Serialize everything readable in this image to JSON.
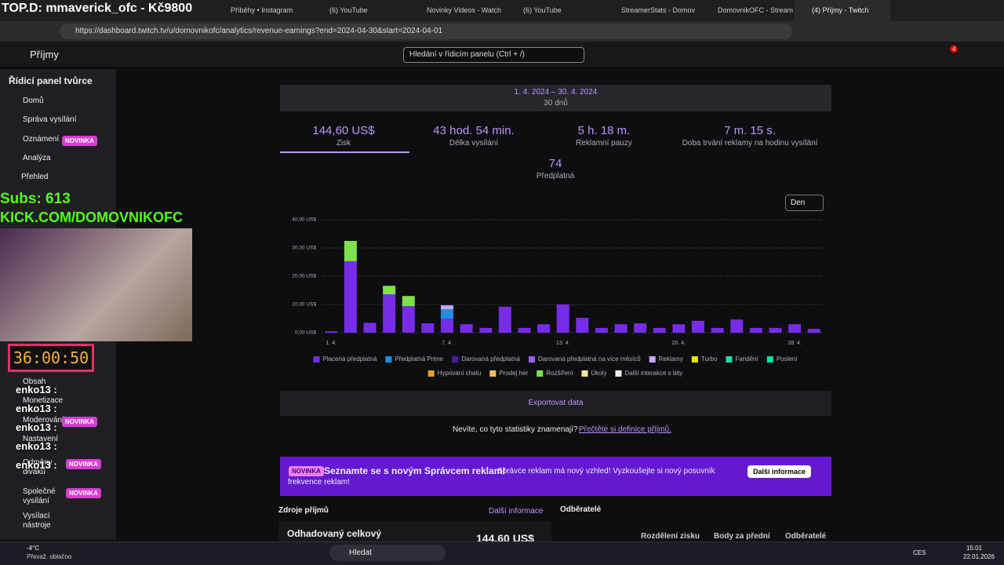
{
  "browser": {
    "tabs": [
      "Příběhy • Instagram",
      "(6) YouTube",
      "Novinky Videos - Watch",
      "(6) YouTube",
      "StreamerStats - Domov",
      "DomovnikOFC - Stream",
      "(4) Příjmy - Twitch"
    ],
    "url": "https://dashboard.twitch.tv/u/domovnikofc/analytics/revenue-earnings?end=2024-04-30&start=2024-04-01"
  },
  "header": {
    "page": "Příjmy",
    "search": "Hledání v řídicím panelu (Ctrl + /)",
    "badge": "4"
  },
  "sidebar": {
    "title": "Řídicí panel tvůrce",
    "items": [
      {
        "label": "Domů"
      },
      {
        "label": "Správa vysílání"
      },
      {
        "label": "Oznámení",
        "tag": "NOVINKA"
      },
      {
        "label": "Analýza"
      },
      {
        "label": "Přehled"
      },
      {
        "label": "Obsah"
      },
      {
        "label": "Monetizace"
      },
      {
        "label": "Moderování",
        "tag": "NOVINKA"
      },
      {
        "label": "Nastavení"
      },
      {
        "label": "Odměny diváků",
        "tag": "NOVINKA"
      },
      {
        "label": "Společné vysílání",
        "tag": "NOVINKA"
      },
      {
        "label": "Vysílací nástroje"
      }
    ]
  },
  "overlay": {
    "top": "TOP.D: mmaverick_ofc - Kč9800",
    "subs": "Subs: 613",
    "kick": "KICK.COM/DOMOVNIKOFC",
    "timer": "36:00:50",
    "chat": [
      "enko13 :",
      "enko13 :",
      "enko13 :",
      "enko13 :",
      "enko13 :"
    ]
  },
  "date": {
    "range": "1. 4. 2024 – 30. 4. 2024",
    "days": "30 dnů"
  },
  "stats": [
    {
      "value": "144,60 US$",
      "label": "Zisk"
    },
    {
      "value": "43 hod. 54 min.",
      "label": "Délka vysílání"
    },
    {
      "value": "5 h. 18 m.",
      "label": "Reklamní pauzy"
    },
    {
      "value": "7 m. 15 s.",
      "label": "Doba trvání reklamy na hodinu vysílání"
    },
    {
      "value": "74",
      "label": "Předplatná"
    }
  ],
  "granularity": "Den",
  "chart_data": {
    "type": "stacked-bar",
    "categories": [
      "1. 4.",
      null,
      null,
      null,
      null,
      null,
      "7. 4.",
      null,
      null,
      null,
      null,
      null,
      "13. 4.",
      null,
      null,
      null,
      null,
      null,
      "20. 4.",
      null,
      null,
      null,
      null,
      null,
      "28. 4.",
      null
    ],
    "ylim": [
      0,
      40
    ],
    "yticks": [
      {
        "value": 0,
        "label": "0,00 US$"
      },
      {
        "value": 10,
        "label": "10,00 US$"
      },
      {
        "value": 20,
        "label": "20,00 US$"
      },
      {
        "value": 30,
        "label": "30,00 US$"
      },
      {
        "value": 40,
        "label": "40,00 US$"
      }
    ],
    "grid": true,
    "series": [
      {
        "name": "Placená předplatná",
        "color": "#772ce8",
        "values": [
          0.5,
          25.3,
          3.5,
          13.6,
          9.4,
          3.3,
          5,
          3,
          1.7,
          9.2,
          1.7,
          3,
          10,
          5.3,
          1.7,
          3,
          3.3,
          1.7,
          3,
          4.2,
          1.7,
          4.7,
          1.7,
          1.7,
          3,
          1.4
        ]
      },
      {
        "name": "Předplatná Prime",
        "color": "#1f8fe0",
        "values": [
          0,
          0,
          0,
          0,
          0,
          0,
          3.3,
          0,
          0,
          0,
          0,
          0,
          0,
          0,
          0,
          0,
          0,
          0,
          0,
          0,
          0,
          0,
          0,
          0,
          0,
          0
        ]
      },
      {
        "name": "Darovaná předplatná",
        "color": "#4b1a9e",
        "values": [
          0,
          0,
          0,
          0,
          0,
          0,
          0,
          0,
          0,
          0,
          0,
          0,
          0,
          0,
          0,
          0,
          0,
          0,
          0,
          0,
          0,
          0,
          0,
          0,
          0,
          0
        ]
      },
      {
        "name": "Darovaná předplatná na více měsíců",
        "color": "#9d5cf0",
        "values": [
          0,
          0,
          0,
          0,
          0,
          0,
          0,
          0,
          0,
          0,
          0,
          0,
          0,
          0,
          0,
          0,
          0,
          0,
          0,
          0,
          0,
          0,
          0,
          0,
          0,
          0
        ]
      },
      {
        "name": "Reklamy",
        "color": "#c8a6ff",
        "values": [
          0,
          0,
          0,
          0,
          0,
          0,
          1.4,
          0,
          0,
          0,
          0,
          0,
          0,
          0,
          0,
          0,
          0,
          0,
          0,
          0,
          0,
          0,
          0,
          0,
          0,
          0
        ]
      },
      {
        "name": "Turbo",
        "color": "#e6e600",
        "values": [
          0,
          0,
          0,
          0,
          0,
          0,
          0,
          0,
          0,
          0,
          0,
          0,
          0,
          0,
          0,
          0,
          0,
          0,
          0,
          0,
          0,
          0,
          0,
          0,
          0,
          0
        ]
      },
      {
        "name": "Fandění",
        "color": "#2ad8b0",
        "values": [
          0,
          0,
          0,
          0,
          0,
          0,
          0,
          0,
          0,
          0,
          0,
          0,
          0,
          0,
          0,
          0,
          0,
          0,
          0,
          0,
          0,
          0,
          0,
          0,
          0,
          0
        ]
      },
      {
        "name": "Poslení",
        "color": "#00e6a0",
        "values": [
          0,
          0,
          0,
          0,
          0,
          0,
          0,
          0,
          0,
          0,
          0,
          0,
          0,
          0,
          0,
          0,
          0,
          0,
          0,
          0,
          0,
          0,
          0,
          0,
          0,
          0
        ]
      },
      {
        "name": "Hypování chatu",
        "color": "#e0a030",
        "values": [
          0,
          0,
          0,
          0,
          0,
          0,
          0,
          0,
          0,
          0,
          0,
          0,
          0,
          0,
          0,
          0,
          0,
          0,
          0,
          0,
          0,
          0,
          0,
          0,
          0,
          0
        ]
      },
      {
        "name": "Prodej her",
        "color": "#f0c060",
        "values": [
          0,
          0,
          0,
          0,
          0,
          0,
          0,
          0,
          0,
          0,
          0,
          0,
          0,
          0,
          0,
          0,
          0,
          0,
          0,
          0,
          0,
          0,
          0,
          0,
          0,
          0
        ]
      },
      {
        "name": "Rozšíření",
        "color": "#7ee04c",
        "values": [
          0,
          7.2,
          0,
          3,
          3.6,
          0,
          0,
          0,
          0,
          0,
          0,
          0,
          0,
          0,
          0,
          0,
          0,
          0,
          0,
          0,
          0,
          0,
          0,
          0,
          0,
          0
        ]
      },
      {
        "name": "Úkoly",
        "color": "#f5e7a0",
        "values": [
          0,
          0,
          0,
          0,
          0,
          0,
          0,
          0,
          0,
          0,
          0,
          0,
          0,
          0,
          0,
          0,
          0,
          0,
          0,
          0,
          0,
          0,
          0,
          0,
          0,
          0
        ]
      },
      {
        "name": "Další interakce s bity",
        "color": "#eeeeee",
        "values": [
          0,
          0,
          0,
          0,
          0,
          0,
          0,
          0,
          0,
          0,
          0,
          0,
          0,
          0,
          0,
          0,
          0,
          0,
          0,
          0,
          0,
          0,
          0,
          0,
          0,
          0
        ]
      }
    ]
  },
  "export": "Exportovat data",
  "help": {
    "question": "Nevíte, co tyto statistiky znamenají?",
    "link": "Přečtěte si definice příjmů."
  },
  "banner": {
    "tag": "NOVINKA",
    "title": "Seznamte se s novým Správcem reklam!",
    "text": "Správce reklam má nový vzhled! Vyzkoušejte si nový posuvník frekvence reklam!",
    "button": "Další informace"
  },
  "bottom": {
    "sources": "Zdroje příjmů",
    "more": "Další informace",
    "subscribers": "Odběratelé",
    "estimated": "Odhadovaný celkový",
    "total": "144,60 US$",
    "cols": [
      "Rozdělení zisku",
      "Body za přední",
      "Odběratelé"
    ]
  },
  "taskbar": {
    "temp": "-4°C",
    "weather": "Převaž. oblačno",
    "search": "Hledat",
    "lang": "CES",
    "time": "15:01",
    "date": "22.01.2026"
  }
}
